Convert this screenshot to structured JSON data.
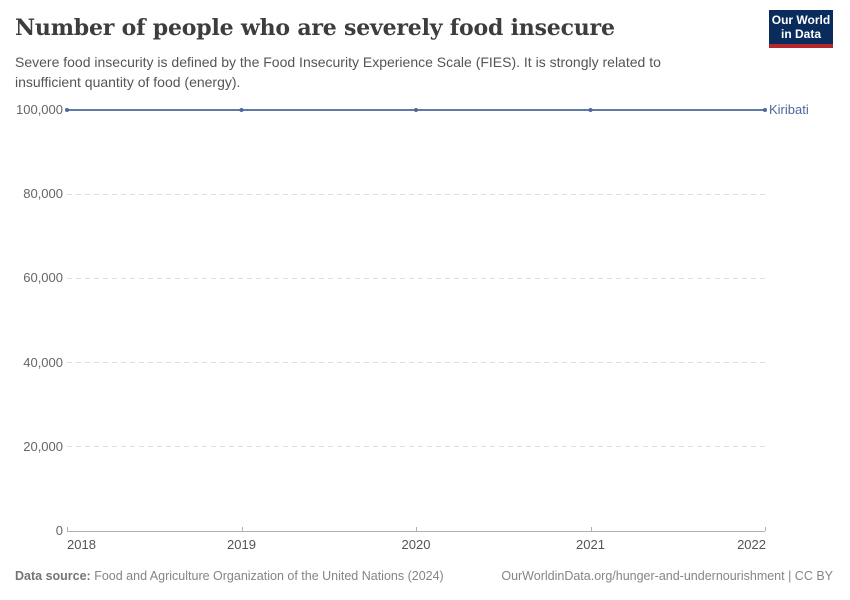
{
  "header": {
    "title": "Number of people who are severely food insecure",
    "subtitle": "Severe food insecurity is defined by the Food Insecurity Experience Scale (FIES). It is strongly related to insufficient quantity of food (energy).",
    "logo": {
      "line1": "Our World",
      "line2": "in Data",
      "bg_color": "#0a2c5c",
      "bar_color": "#b5272c"
    }
  },
  "chart_data": {
    "type": "line",
    "title": "Number of people who are severely food insecure",
    "x": [
      2018,
      2019,
      2020,
      2021,
      2022
    ],
    "x_tick_labels": [
      "2018",
      "2019",
      "2020",
      "2021",
      "2022"
    ],
    "y_tick_labels": [
      "0",
      "20,000",
      "40,000",
      "60,000",
      "80,000",
      "100,000"
    ],
    "y_tick_values": [
      0,
      20000,
      40000,
      60000,
      80000,
      100000
    ],
    "ylim": [
      0,
      100000
    ],
    "grid": "horizontal-dashed",
    "legend_position": "end-of-line-label",
    "series": [
      {
        "name": "Kiribati",
        "color": "#4C6A9C",
        "values": [
          100000,
          100000,
          100000,
          100000,
          100000
        ]
      }
    ]
  },
  "footer": {
    "source_label": "Data source:",
    "source_text": " Food and Agriculture Organization of the United Nations (2024)",
    "right_text": "OurWorldinData.org/hunger-and-undernourishment | CC BY"
  }
}
